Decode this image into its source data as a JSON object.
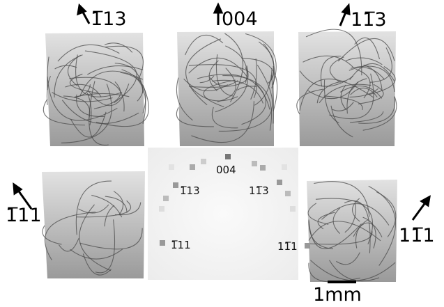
{
  "panels": {
    "top": [
      "1̅13",
      "004",
      "11̅3"
    ],
    "left": "1̅11",
    "right": "11̅1"
  },
  "pattern": {
    "spot_labels": [
      "004",
      "1̅13",
      "11̅3",
      "1̅11",
      "11̅1"
    ]
  },
  "scale_bar": "1mm"
}
